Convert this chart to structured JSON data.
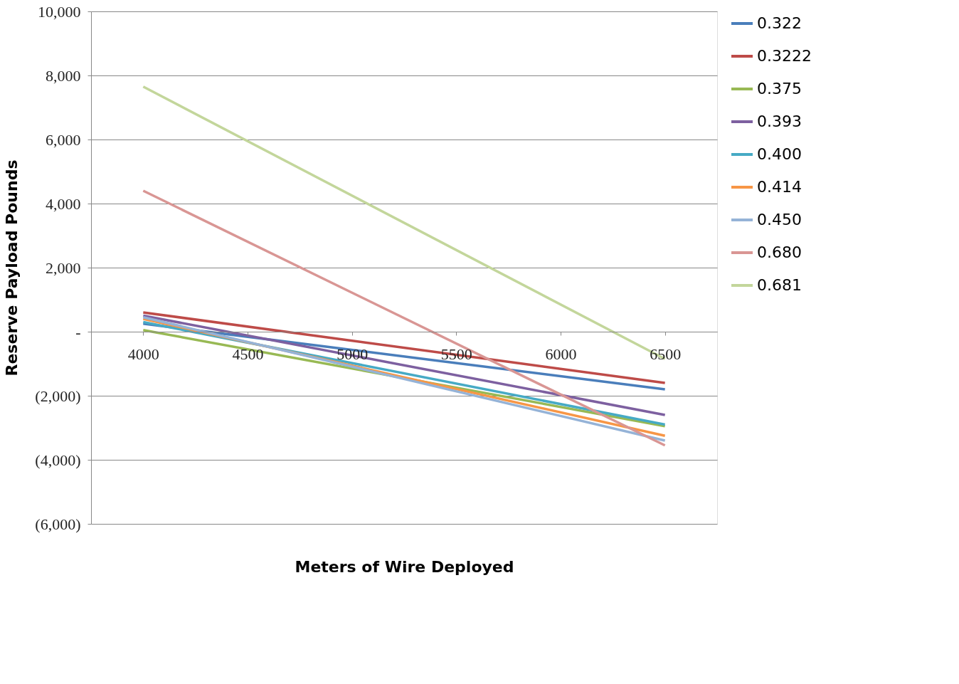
{
  "chart_data": {
    "type": "line",
    "xlabel": "Meters of Wire Deployed",
    "ylabel": "Reserve Payload Pounds",
    "x": [
      4000,
      6500
    ],
    "xlim": [
      3750,
      6750
    ],
    "xticks": [
      4000,
      4500,
      5000,
      5500,
      6000,
      6500
    ],
    "ylim": [
      -6000,
      10000
    ],
    "yticks": [
      {
        "value": -6000,
        "label": "(6,000)"
      },
      {
        "value": -4000,
        "label": "(4,000)"
      },
      {
        "value": -2000,
        "label": "(2,000)"
      },
      {
        "value": 0,
        "label": "-"
      },
      {
        "value": 2000,
        "label": "2,000"
      },
      {
        "value": 4000,
        "label": "4,000"
      },
      {
        "value": 6000,
        "label": "6,000"
      },
      {
        "value": 8000,
        "label": "8,000"
      },
      {
        "value": 10000,
        "label": "10,000"
      }
    ],
    "grid": "y",
    "legend": "right",
    "marker": "none",
    "series": [
      {
        "name": "0.322",
        "color": "#4a7ebb",
        "values": [
          250,
          -1800
        ]
      },
      {
        "name": "0.3222",
        "color": "#be4b48",
        "values": [
          600,
          -1600
        ]
      },
      {
        "name": "0.375",
        "color": "#98b954",
        "values": [
          50,
          -2950
        ]
      },
      {
        "name": "0.393",
        "color": "#7d60a0",
        "values": [
          500,
          -2600
        ]
      },
      {
        "name": "0.400",
        "color": "#46aac5",
        "values": [
          300,
          -2900
        ]
      },
      {
        "name": "0.414",
        "color": "#f79646",
        "values": [
          400,
          -3250
        ]
      },
      {
        "name": "0.450",
        "color": "#95b3d7",
        "values": [
          450,
          -3400
        ]
      },
      {
        "name": "0.680",
        "color": "#d99694",
        "values": [
          4400,
          -3550
        ]
      },
      {
        "name": "0.681",
        "color": "#c3d69b",
        "values": [
          7650,
          -850
        ]
      }
    ]
  }
}
